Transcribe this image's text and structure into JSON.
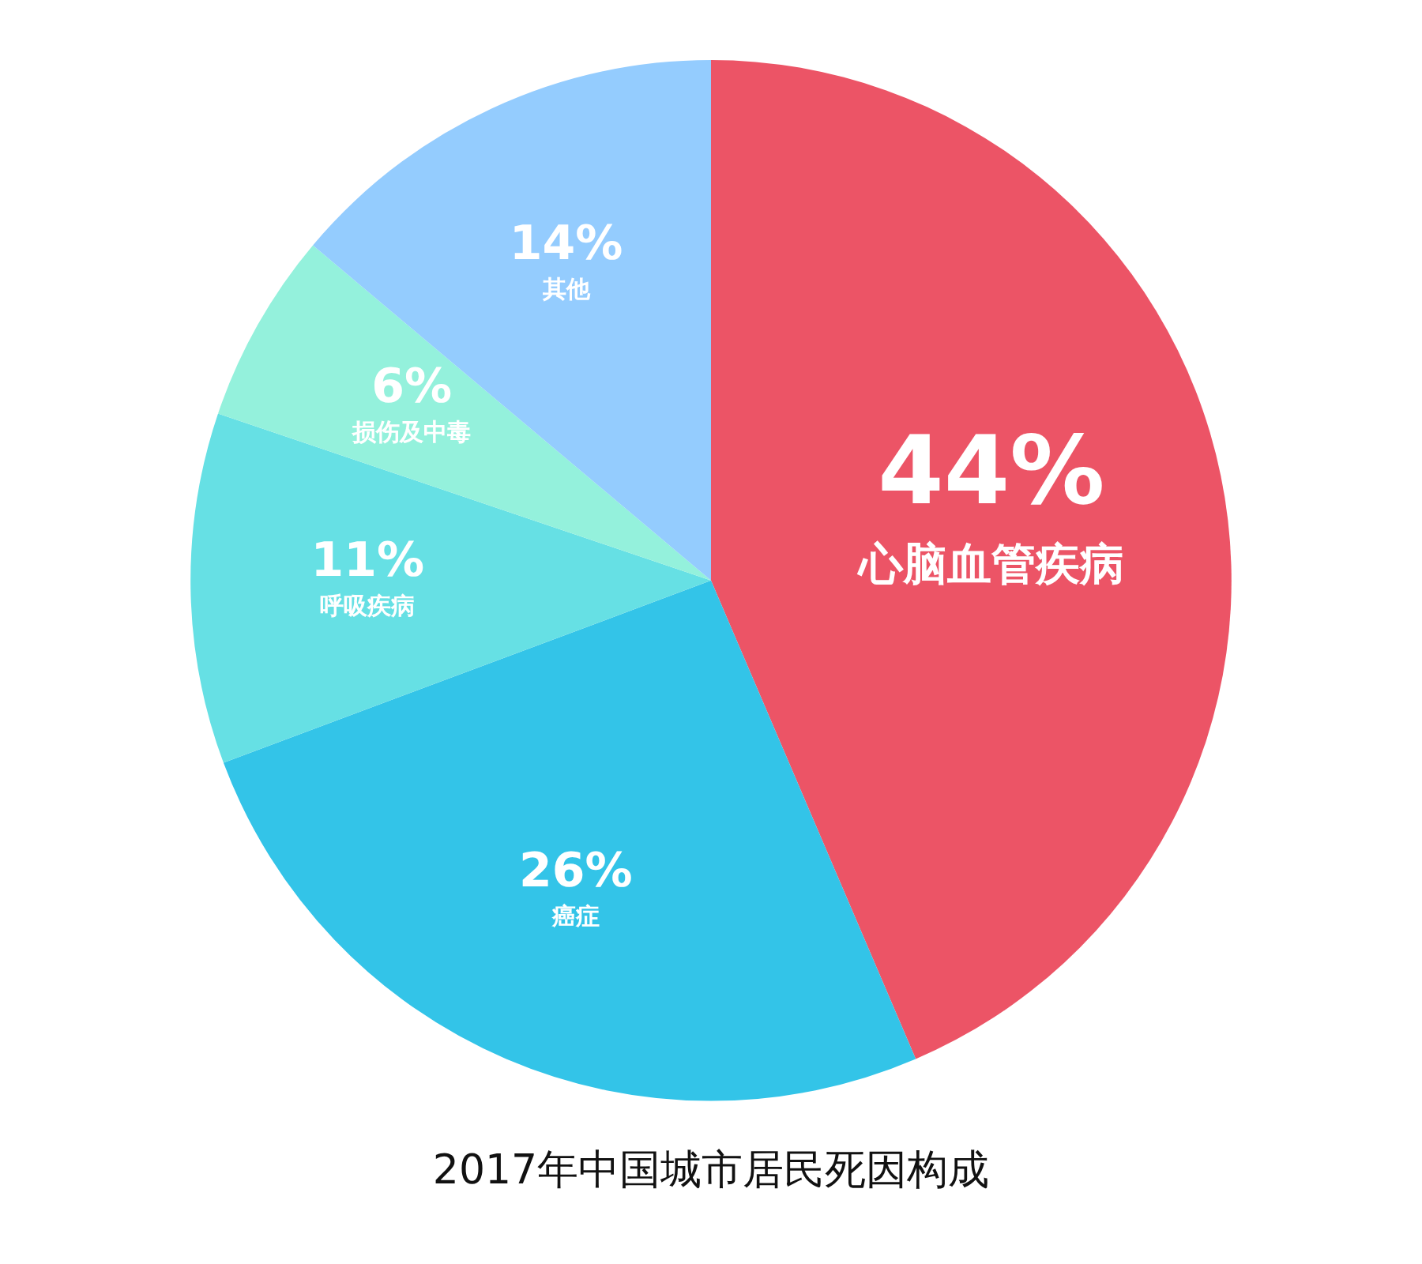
{
  "chart_data": {
    "type": "pie",
    "title": "2017年中国城市居民死因构成",
    "categories": [
      "心脑血管疾病",
      "癌症",
      "呼吸疾病",
      "损伤及中毒",
      "其他"
    ],
    "values": [
      44,
      26,
      11,
      6,
      14
    ],
    "value_labels": [
      "44%",
      "26%",
      "11%",
      "6%",
      "14%"
    ],
    "colors": [
      "#ec5466",
      "#33c4e8",
      "#66e0e4",
      "#94f1dc",
      "#94ccfe"
    ],
    "legend": false
  }
}
